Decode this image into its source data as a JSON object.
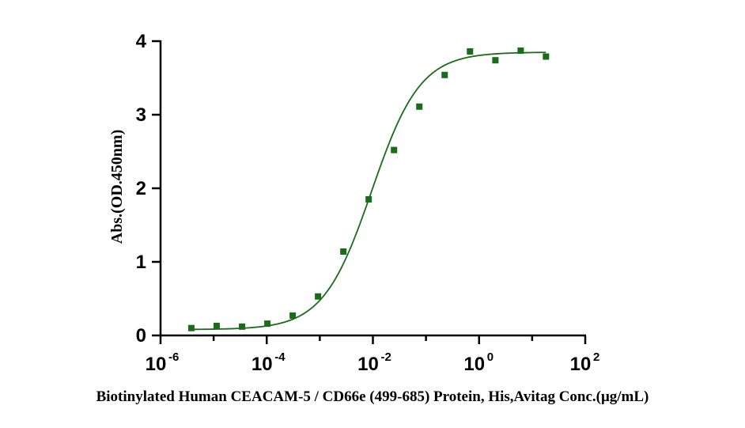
{
  "chart_data": {
    "type": "scatter",
    "xlabel": "Biotinylated Human CEACAM-5 / CD66e (499-685) Protein, His,Avitag Conc.(μg/mL)",
    "ylabel": "Abs.(OD.450nm)",
    "x_scale": "log",
    "xlim": [
      1e-06,
      100
    ],
    "ylim": [
      0,
      4
    ],
    "x_ticks": [
      {
        "value": 1e-06,
        "base": "10",
        "exp": "-6"
      },
      {
        "value": 0.0001,
        "base": "10",
        "exp": "-4"
      },
      {
        "value": 0.01,
        "base": "10",
        "exp": "-2"
      },
      {
        "value": 1,
        "base": "10",
        "exp": "0"
      },
      {
        "value": 100,
        "base": "10",
        "exp": "2"
      }
    ],
    "y_ticks": [
      {
        "value": 0,
        "label": "0"
      },
      {
        "value": 1,
        "label": "1"
      },
      {
        "value": 2,
        "label": "2"
      },
      {
        "value": 3,
        "label": "3"
      },
      {
        "value": 4,
        "label": "4"
      }
    ],
    "grid": false,
    "color": "#1a6b1a",
    "series": [
      {
        "x": [
          3.8e-06,
          1.14e-05,
          3.43e-05,
          0.000103,
          0.000309,
          0.000926,
          0.00278,
          0.00833,
          0.025,
          0.075,
          0.225,
          0.675,
          2.03,
          6.08,
          18.2
        ],
        "y": [
          0.1,
          0.13,
          0.12,
          0.16,
          0.27,
          0.53,
          1.14,
          1.85,
          2.52,
          3.11,
          3.54,
          3.86,
          3.74,
          3.87,
          3.79
        ]
      }
    ],
    "fit": {
      "type": "4PL",
      "bottom": 0.08,
      "top": 3.85,
      "ec50": 0.0095,
      "hill": 0.95,
      "x_range": [
        3.8e-06,
        18.2
      ]
    }
  }
}
